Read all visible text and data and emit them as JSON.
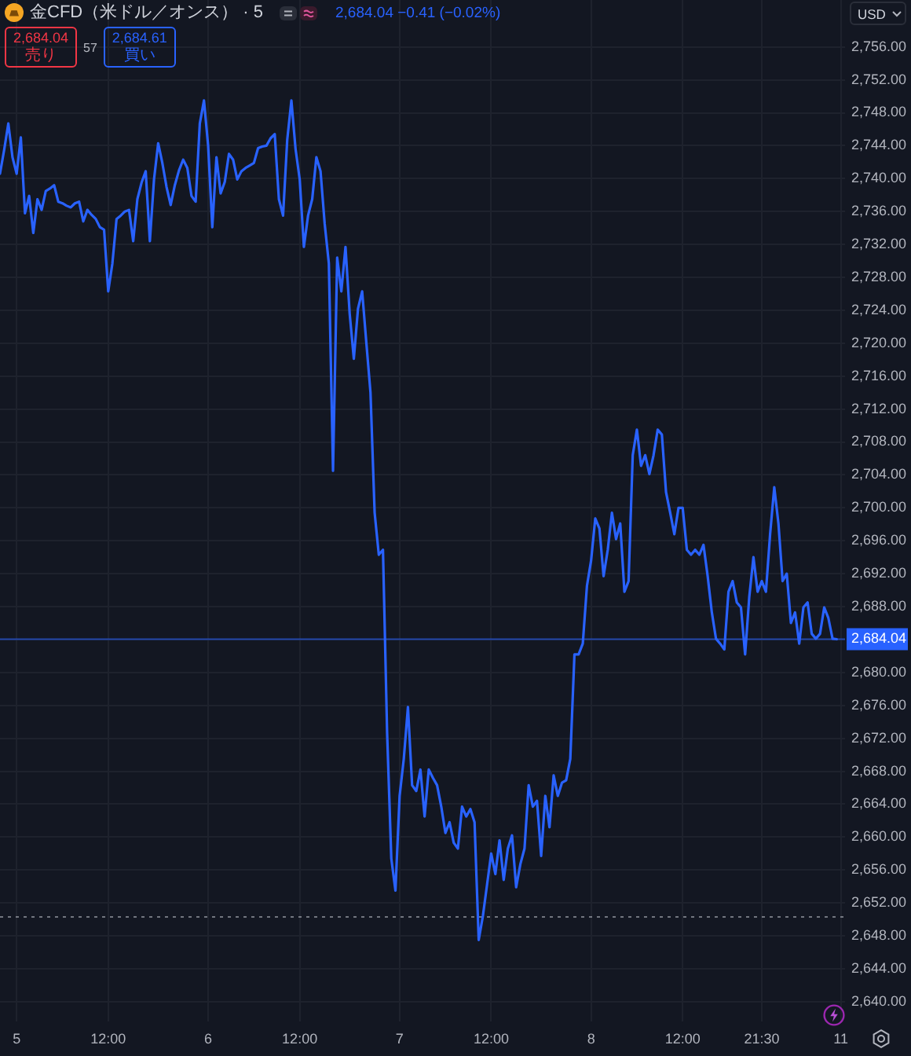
{
  "chart_data": {
    "type": "line",
    "title": "金CFD（米ドル／オンス） · 5",
    "annotations": [
      "2,684.04 −0.41 (−0.02%)",
      "2,684.04",
      "売り",
      "57",
      "2,684.61",
      "買い",
      "USD"
    ],
    "categories": [
      null,
      null,
      null,
      null,
      "5",
      null,
      null,
      null,
      null,
      null,
      null,
      null,
      null,
      null,
      null,
      null,
      null,
      null,
      null,
      null,
      null,
      null,
      null,
      null,
      null,
      null,
      "12:00",
      null,
      null,
      null,
      null,
      null,
      null,
      null,
      null,
      null,
      null,
      null,
      null,
      null,
      null,
      null,
      null,
      null,
      null,
      null,
      null,
      null,
      null,
      null,
      "6",
      null,
      null,
      null,
      null,
      null,
      null,
      null,
      null,
      null,
      null,
      null,
      null,
      null,
      null,
      null,
      null,
      null,
      null,
      null,
      null,
      null,
      "12:00",
      null,
      null,
      null,
      null,
      null,
      null,
      null,
      null,
      null,
      null,
      null,
      null,
      null,
      null,
      null,
      null,
      null,
      null,
      null,
      null,
      null,
      null,
      null,
      "7",
      null,
      null,
      null,
      null,
      null,
      null,
      null,
      null,
      null,
      null,
      null,
      null,
      null,
      null,
      null,
      null,
      null,
      null,
      null,
      null,
      null,
      "12:00",
      null,
      null,
      null,
      null,
      null,
      null,
      null,
      null,
      null,
      null,
      null,
      null,
      null,
      null,
      null,
      null,
      null,
      null,
      null,
      null,
      null,
      null,
      null,
      "8",
      null,
      null,
      null,
      null,
      null,
      null,
      null,
      null,
      null,
      null,
      null,
      null,
      null,
      null,
      null,
      null,
      null,
      null,
      null,
      null,
      null,
      "12:00",
      null,
      null,
      null,
      null,
      null,
      null,
      null,
      null,
      null,
      null,
      null,
      null,
      null,
      null,
      null,
      null,
      null,
      null,
      "21:30",
      null,
      null,
      null,
      null,
      null,
      null,
      null,
      null,
      null,
      null,
      null,
      null,
      null,
      null,
      null,
      null,
      null,
      null,
      "11",
      null
    ],
    "series": [
      {
        "color": "#2962ff",
        "values": [
          2740.6,
          2743.5,
          2746.7,
          2742.6,
          2740.6,
          2745.0,
          2735.8,
          2737.9,
          2733.4,
          2737.5,
          2736.2,
          2738.5,
          2738.8,
          2739.2,
          2737.2,
          2737.0,
          2736.7,
          2736.5,
          2737.0,
          2737.2,
          2734.8,
          2736.2,
          2735.6,
          2735.1,
          2734.1,
          2733.8,
          2726.3,
          2729.7,
          2735.1,
          2735.5,
          2736.0,
          2736.2,
          2732.4,
          2737.5,
          2739.5,
          2740.9,
          2732.4,
          2739.9,
          2744.3,
          2741.9,
          2739.0,
          2736.8,
          2739.2,
          2741.0,
          2742.3,
          2741.3,
          2737.9,
          2737.2,
          2746.7,
          2749.5,
          2744.0,
          2734.1,
          2742.6,
          2738.2,
          2739.6,
          2743.0,
          2742.3,
          2739.9,
          2740.9,
          2741.3,
          2741.6,
          2741.9,
          2743.7,
          2743.9,
          2744.0,
          2744.9,
          2745.4,
          2737.5,
          2735.5,
          2744.7,
          2749.5,
          2743.6,
          2739.9,
          2731.7,
          2735.5,
          2737.5,
          2742.6,
          2740.9,
          2734.5,
          2729.7,
          2704.5,
          2730.4,
          2726.3,
          2731.7,
          2723.6,
          2718.1,
          2724.2,
          2726.3,
          2720.1,
          2714.0,
          2699.4,
          2694.3,
          2694.9,
          2672.6,
          2657.4,
          2653.5,
          2665.0,
          2669.5,
          2675.8,
          2666.3,
          2665.6,
          2668.2,
          2662.5,
          2668.2,
          2667.2,
          2666.3,
          2663.7,
          2660.5,
          2661.8,
          2659.3,
          2658.6,
          2663.7,
          2662.5,
          2663.4,
          2661.8,
          2647.5,
          2650.4,
          2654.2,
          2658.0,
          2655.5,
          2659.6,
          2654.8,
          2658.6,
          2660.2,
          2653.9,
          2656.7,
          2658.6,
          2666.3,
          2663.7,
          2664.4,
          2657.7,
          2665.0,
          2661.2,
          2667.5,
          2665.0,
          2666.6,
          2666.9,
          2669.5,
          2682.2,
          2682.2,
          2683.5,
          2690.5,
          2693.6,
          2698.7,
          2697.5,
          2691.7,
          2694.9,
          2699.4,
          2696.2,
          2698.1,
          2689.8,
          2691.1,
          2706.4,
          2709.5,
          2705.1,
          2706.4,
          2704.1,
          2706.4,
          2709.5,
          2708.9,
          2701.9,
          2699.4,
          2696.8,
          2700.0,
          2700.0,
          2694.9,
          2694.3,
          2694.9,
          2694.3,
          2695.5,
          2691.7,
          2687.3,
          2684.1,
          2683.5,
          2682.8,
          2689.8,
          2691.1,
          2688.5,
          2687.9,
          2682.2,
          2689.2,
          2694.0,
          2689.8,
          2691.1,
          2689.8,
          2696.8,
          2702.5,
          2698.1,
          2691.1,
          2692.0,
          2686.0,
          2687.3,
          2683.5,
          2687.9,
          2688.5,
          2684.7,
          2684.1,
          2684.7,
          2687.9,
          2686.6,
          2684.1,
          2684.04,
          null,
          null
        ]
      }
    ],
    "ylim": [
      2637.6,
      2761.7
    ],
    "yticks": [
      {
        "value": 2640,
        "label": "2,640.00"
      },
      {
        "value": 2644,
        "label": "2,644.00"
      },
      {
        "value": 2648,
        "label": "2,648.00"
      },
      {
        "value": 2652,
        "label": "2,652.00"
      },
      {
        "value": 2656,
        "label": "2,656.00"
      },
      {
        "value": 2660,
        "label": "2,660.00"
      },
      {
        "value": 2664,
        "label": "2,664.00"
      },
      {
        "value": 2668,
        "label": "2,668.00"
      },
      {
        "value": 2672,
        "label": "2,672.00"
      },
      {
        "value": 2676,
        "label": "2,676.00"
      },
      {
        "value": 2680,
        "label": "2,680.00"
      },
      {
        "value": 2684,
        "label": null
      },
      {
        "value": 2688,
        "label": "2,688.00"
      },
      {
        "value": 2692,
        "label": "2,692.00"
      },
      {
        "value": 2696,
        "label": "2,696.00"
      },
      {
        "value": 2700,
        "label": "2,700.00"
      },
      {
        "value": 2704,
        "label": "2,704.00"
      },
      {
        "value": 2708,
        "label": "2,708.00"
      },
      {
        "value": 2712,
        "label": "2,712.00"
      },
      {
        "value": 2716,
        "label": "2,716.00"
      },
      {
        "value": 2720,
        "label": "2,720.00"
      },
      {
        "value": 2724,
        "label": "2,724.00"
      },
      {
        "value": 2728,
        "label": "2,728.00"
      },
      {
        "value": 2732,
        "label": "2,732.00"
      },
      {
        "value": 2736,
        "label": "2,736.00"
      },
      {
        "value": 2740,
        "label": "2,740.00"
      },
      {
        "value": 2744,
        "label": "2,744.00"
      },
      {
        "value": 2748,
        "label": "2,748.00"
      },
      {
        "value": 2752,
        "label": "2,752.00"
      },
      {
        "value": 2756,
        "label": "2,756.00"
      }
    ],
    "grid": true,
    "marker": "none",
    "ref_lines": [
      {
        "axis": "y",
        "value": 2684.04,
        "label": "2,684.04",
        "color": "#2962ff",
        "line_style": "solid"
      },
      {
        "axis": "y",
        "value": 2650.3,
        "color": "#b2b5be",
        "line_style": "dotted"
      }
    ]
  }
}
